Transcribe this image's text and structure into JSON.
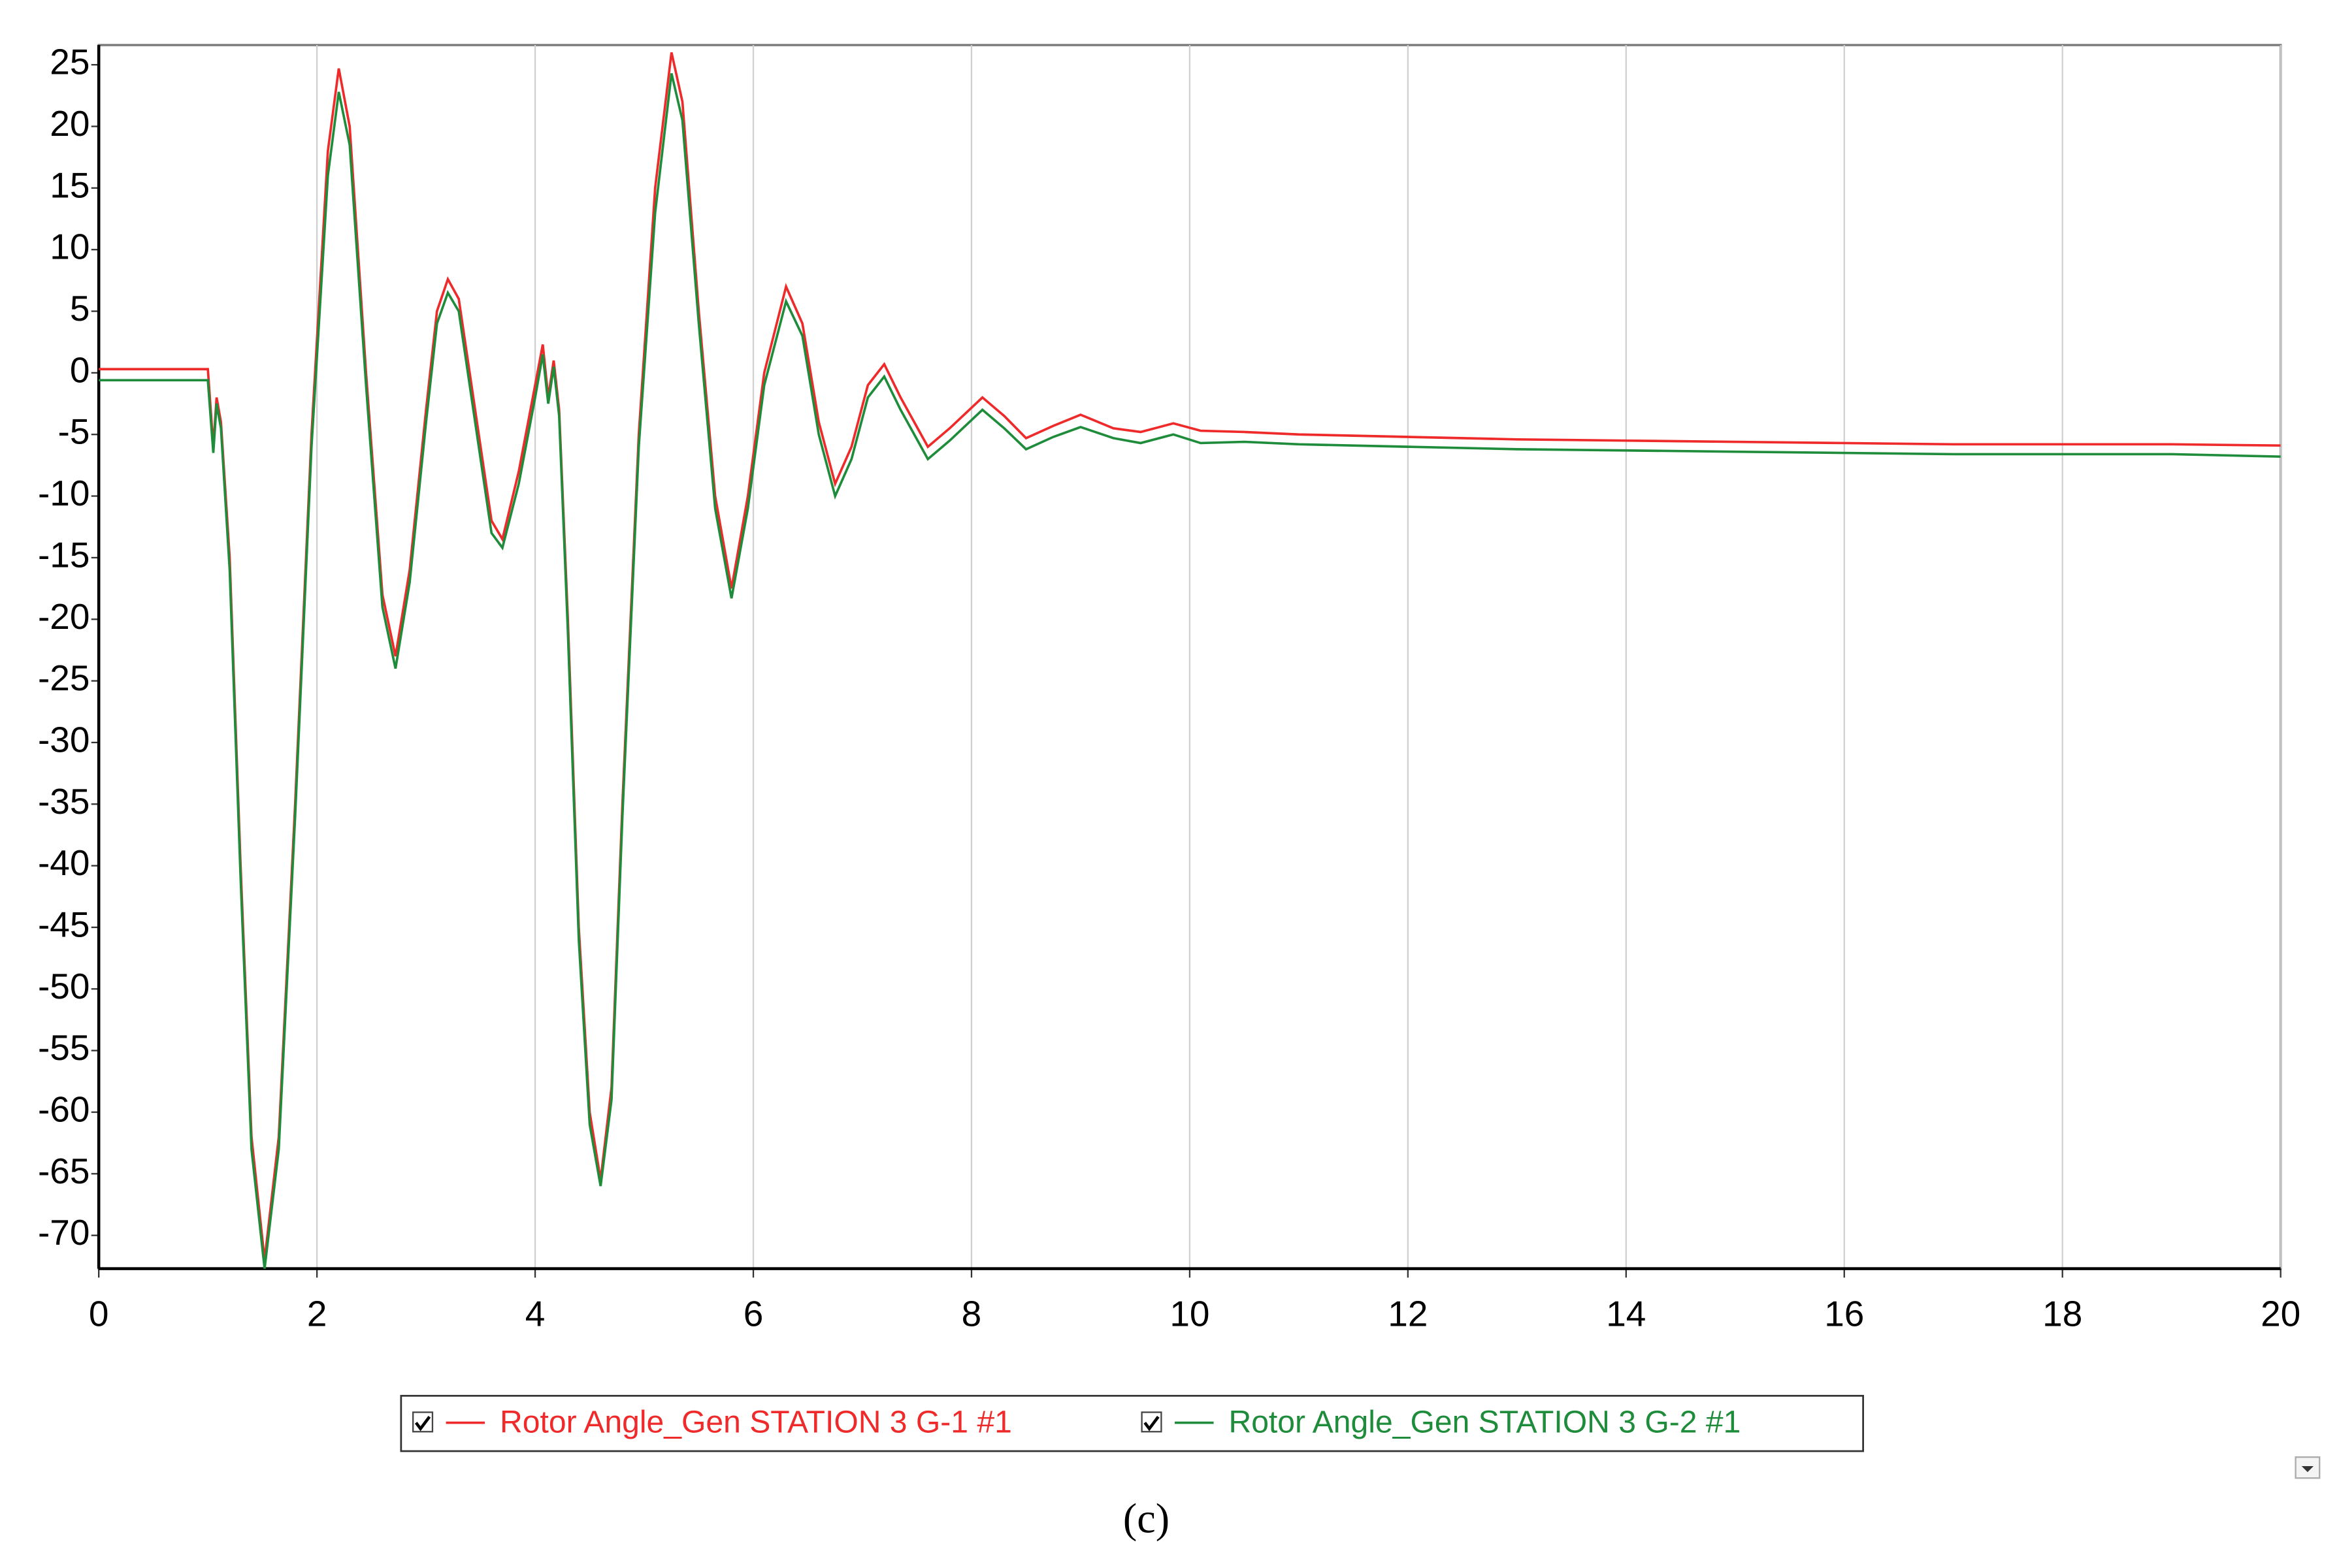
{
  "chart_data": {
    "type": "line",
    "caption": "(c)",
    "x": [
      0,
      1.0,
      1.05,
      1.08,
      1.12,
      1.2,
      1.3,
      1.4,
      1.52,
      1.65,
      1.8,
      1.95,
      2.1,
      2.2,
      2.3,
      2.45,
      2.6,
      2.72,
      2.85,
      3.0,
      3.1,
      3.2,
      3.3,
      3.45,
      3.6,
      3.7,
      3.85,
      4.0,
      4.07,
      4.12,
      4.17,
      4.22,
      4.3,
      4.4,
      4.5,
      4.6,
      4.7,
      4.8,
      4.95,
      5.1,
      5.25,
      5.35,
      5.5,
      5.65,
      5.8,
      5.95,
      6.1,
      6.3,
      6.45,
      6.6,
      6.75,
      6.9,
      7.05,
      7.2,
      7.35,
      7.6,
      7.8,
      8.1,
      8.3,
      8.5,
      8.75,
      9.0,
      9.3,
      9.55,
      9.85,
      10.1,
      10.5,
      11,
      12,
      13,
      14,
      15,
      16,
      17,
      18,
      19,
      20
    ],
    "series": [
      {
        "name": "Rotor Angle_Gen STATION 3 G-1 #1",
        "color": "#ee2a2a",
        "values": [
          0.3,
          0.3,
          -6,
          -2,
          -4,
          -15,
          -40,
          -62,
          -72,
          -62,
          -35,
          -5,
          18,
          24.7,
          20,
          0,
          -18,
          -23,
          -16,
          -3,
          5,
          7.6,
          6,
          -3,
          -12,
          -13.5,
          -8,
          -1,
          2.3,
          -2,
          1,
          -3,
          -20,
          -45,
          -60,
          -65.5,
          -58,
          -35,
          -5,
          15,
          26,
          22,
          5,
          -10,
          -17.5,
          -10,
          0,
          7,
          4,
          -4,
          -9,
          -6,
          -1,
          0.7,
          -2,
          -6,
          -4.5,
          -2,
          -3.5,
          -5.3,
          -4.3,
          -3.4,
          -4.5,
          -4.8,
          -4.1,
          -4.7,
          -4.8,
          -5,
          -5.2,
          -5.4,
          -5.5,
          -5.6,
          -5.7,
          -5.8,
          -5.8,
          -5.8,
          -5.9
        ]
      },
      {
        "name": "Rotor Angle_Gen STATION 3 G-2 #1",
        "color": "#1e8c3a",
        "values": [
          -0.6,
          -0.6,
          -6.5,
          -2.5,
          -4.5,
          -16,
          -41,
          -63,
          -72.7,
          -63,
          -36,
          -6,
          16,
          22.8,
          18.5,
          -1,
          -19,
          -24,
          -17,
          -4,
          4,
          6.5,
          5,
          -4,
          -13,
          -14.2,
          -9,
          -2,
          1.5,
          -2.5,
          0.5,
          -3.5,
          -21,
          -46,
          -61,
          -66,
          -59,
          -36,
          -6,
          13,
          24.3,
          20.5,
          4,
          -11,
          -18.3,
          -11,
          -1,
          5.8,
          3,
          -5,
          -10,
          -7,
          -2,
          -0.3,
          -3,
          -7,
          -5.5,
          -3,
          -4.5,
          -6.2,
          -5.2,
          -4.4,
          -5.3,
          -5.7,
          -5,
          -5.7,
          -5.6,
          -5.8,
          -6,
          -6.2,
          -6.3,
          -6.4,
          -6.5,
          -6.6,
          -6.6,
          -6.6,
          -6.8
        ]
      }
    ],
    "xlim": [
      0,
      20
    ],
    "xticks": [
      0,
      2,
      4,
      6,
      8,
      10,
      12,
      14,
      16,
      18,
      20
    ],
    "ylim": [
      -72.7,
      26.6
    ],
    "yticks": [
      25,
      20,
      15,
      10,
      5,
      0,
      -5,
      -10,
      -15,
      -20,
      -25,
      -30,
      -35,
      -40,
      -45,
      -50,
      -55,
      -60,
      -65,
      -70
    ],
    "grid": "x"
  }
}
